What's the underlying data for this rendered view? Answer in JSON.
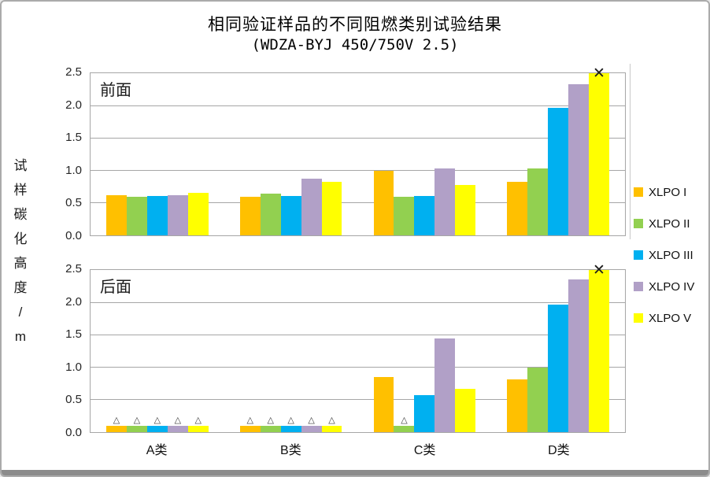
{
  "page": {
    "title": "相同验证样品的不同阻燃类别试验结果",
    "subtitle": "(WDZA-BYJ 450/750V 2.5)",
    "y_axis_title": "试样碳化高度/m"
  },
  "legend": {
    "position": "right-middle",
    "items": [
      {
        "label": "XLPO I",
        "color": "#FFC000"
      },
      {
        "label": "XLPO II",
        "color": "#92D050"
      },
      {
        "label": "XLPO III",
        "color": "#00B0F0"
      },
      {
        "label": "XLPO IV",
        "color": "#B1A0C7"
      },
      {
        "label": "XLPO V",
        "color": "#FFFF00"
      }
    ]
  },
  "chart_data": [
    {
      "type": "bar",
      "panel_label": "前面",
      "categories": [
        "A类",
        "B类",
        "C类",
        "D类"
      ],
      "ylim": [
        0,
        2.5
      ],
      "ytick_step": 0.5,
      "grid": true,
      "ylabel": "试样碳化高度/m",
      "series": [
        {
          "name": "XLPO I",
          "color": "#FFC000",
          "values": [
            0.62,
            0.6,
            1.0,
            0.83
          ]
        },
        {
          "name": "XLPO II",
          "color": "#92D050",
          "values": [
            0.59,
            0.64,
            0.6,
            1.03
          ]
        },
        {
          "name": "XLPO III",
          "color": "#00B0F0",
          "values": [
            0.61,
            0.61,
            0.61,
            1.97
          ]
        },
        {
          "name": "XLPO IV",
          "color": "#B1A0C7",
          "values": [
            0.62,
            0.87,
            1.03,
            2.33
          ]
        },
        {
          "name": "XLPO V",
          "color": "#FFFF00",
          "values": [
            0.66,
            0.82,
            0.78,
            2.5
          ]
        }
      ],
      "markers": [
        {
          "series_index": 4,
          "category_index": 3,
          "symbol": "✕"
        }
      ]
    },
    {
      "type": "bar",
      "panel_label": "后面",
      "categories": [
        "A类",
        "B类",
        "C类",
        "D类"
      ],
      "ylim": [
        0,
        2.5
      ],
      "ytick_step": 0.5,
      "grid": true,
      "ylabel": "试样碳化高度/m",
      "series": [
        {
          "name": "XLPO I",
          "color": "#FFC000",
          "values": [
            0.1,
            0.1,
            0.85,
            0.81
          ]
        },
        {
          "name": "XLPO II",
          "color": "#92D050",
          "values": [
            0.1,
            0.1,
            0.1,
            1.0
          ]
        },
        {
          "name": "XLPO III",
          "color": "#00B0F0",
          "values": [
            0.1,
            0.1,
            0.57,
            1.97
          ]
        },
        {
          "name": "XLPO IV",
          "color": "#B1A0C7",
          "values": [
            0.1,
            0.1,
            1.44,
            2.36
          ]
        },
        {
          "name": "XLPO V",
          "color": "#FFFF00",
          "values": [
            0.1,
            0.1,
            0.67,
            2.5
          ]
        }
      ],
      "markers": [
        {
          "series_index": 0,
          "category_index": 0,
          "symbol": "△"
        },
        {
          "series_index": 1,
          "category_index": 0,
          "symbol": "△"
        },
        {
          "series_index": 2,
          "category_index": 0,
          "symbol": "△"
        },
        {
          "series_index": 3,
          "category_index": 0,
          "symbol": "△"
        },
        {
          "series_index": 4,
          "category_index": 0,
          "symbol": "△"
        },
        {
          "series_index": 0,
          "category_index": 1,
          "symbol": "△"
        },
        {
          "series_index": 1,
          "category_index": 1,
          "symbol": "△"
        },
        {
          "series_index": 2,
          "category_index": 1,
          "symbol": "△"
        },
        {
          "series_index": 3,
          "category_index": 1,
          "symbol": "△"
        },
        {
          "series_index": 4,
          "category_index": 1,
          "symbol": "△"
        },
        {
          "series_index": 1,
          "category_index": 2,
          "symbol": "△"
        },
        {
          "series_index": 4,
          "category_index": 3,
          "symbol": "✕"
        }
      ]
    }
  ]
}
